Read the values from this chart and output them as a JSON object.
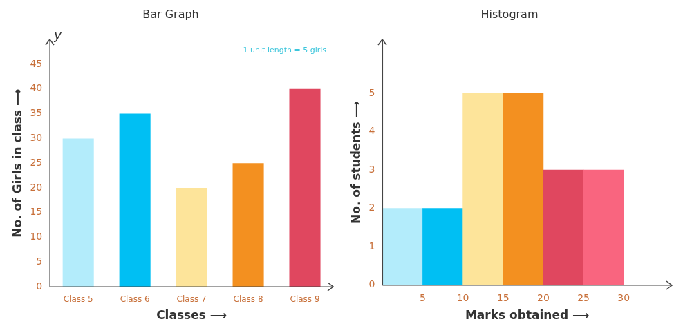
{
  "chart_data": [
    {
      "type": "bar",
      "title": "Bar Graph",
      "xlabel": "Classes ⟶",
      "ylabel": "No. of Girls in class ⟶",
      "categories": [
        "Class 5",
        "Class 6",
        "Class 7",
        "Class 8",
        "Class 9"
      ],
      "values": [
        30,
        35,
        20,
        25,
        40
      ],
      "colors": [
        "#b3ecfb",
        "#00bff3",
        "#fde49a",
        "#f39020",
        "#e0475f"
      ],
      "ylim": [
        0,
        50
      ],
      "yticks": [
        0,
        5,
        10,
        15,
        20,
        25,
        30,
        35,
        40,
        45
      ],
      "grid": false,
      "legend": false,
      "annotations": [
        "y",
        "1 unit length = 5 girls"
      ]
    },
    {
      "type": "histogram",
      "title": "Histogram",
      "xlabel": "Marks obtained ⟶",
      "ylabel": "No. of students ⟶",
      "bins": [
        0,
        5,
        10,
        15,
        20,
        25,
        30
      ],
      "values": [
        2,
        2,
        5,
        5,
        3,
        3
      ],
      "colors": [
        "#b3ecfb",
        "#00bff3",
        "#fde49a",
        "#f39020",
        "#e0475f",
        "#f9657f"
      ],
      "xlim": [
        0,
        36
      ],
      "xticks": [
        5,
        10,
        15,
        20,
        25,
        30
      ],
      "ylim": [
        0,
        6.4
      ],
      "yticks": [
        0,
        1,
        2,
        3,
        4,
        5
      ],
      "grid": false,
      "legend": false
    }
  ]
}
